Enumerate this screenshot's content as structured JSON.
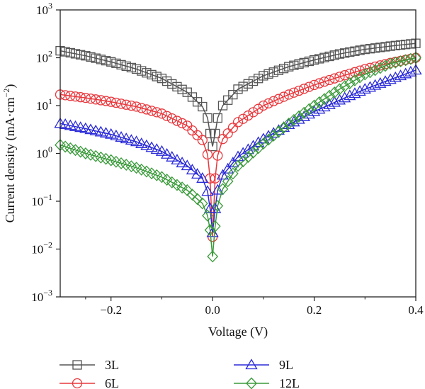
{
  "chart_data": {
    "type": "scatter",
    "title": "",
    "xlabel": "Voltage (V)",
    "ylabel": {
      "text": "Current density (mA·cm",
      "sup": "−2",
      "close": ")"
    },
    "xlim": [
      -0.3,
      0.4
    ],
    "ylim": [
      0.001,
      1000
    ],
    "yscale": "log",
    "grid": false,
    "legend_position": "below",
    "x_ticks": [
      {
        "value": -0.2,
        "label": "−0.2"
      },
      {
        "value": 0.0,
        "label": "0.0"
      },
      {
        "value": 0.2,
        "label": "0.2"
      },
      {
        "value": 0.4,
        "label": "0.4"
      }
    ],
    "y_ticks": [
      {
        "value": 0.001,
        "base": "10",
        "exp": "−3"
      },
      {
        "value": 0.01,
        "base": "10",
        "exp": "−2"
      },
      {
        "value": 0.1,
        "base": "10",
        "exp": "−1"
      },
      {
        "value": 1,
        "base": "10",
        "exp": "0"
      },
      {
        "value": 10,
        "base": "10",
        "exp": "1"
      },
      {
        "value": 100,
        "base": "10",
        "exp": "2"
      },
      {
        "value": 1000,
        "base": "10",
        "exp": "3"
      }
    ],
    "series": [
      {
        "name": "3L",
        "marker": "square",
        "color": "#555555",
        "x": [
          -0.3,
          -0.25,
          -0.2,
          -0.15,
          -0.1,
          -0.05,
          -0.02,
          -0.01,
          -0.005,
          0,
          0.005,
          0.01,
          0.02,
          0.05,
          0.1,
          0.15,
          0.2,
          0.25,
          0.3,
          0.35,
          0.4
        ],
        "y": [
          140,
          110,
          82,
          58,
          37,
          19,
          9.5,
          5.5,
          2.6,
          1.4,
          2.6,
          5.5,
          10,
          22,
          42,
          65,
          90,
          120,
          150,
          175,
          200
        ]
      },
      {
        "name": "6L",
        "marker": "circle",
        "color": "#e8383d",
        "x": [
          -0.3,
          -0.25,
          -0.2,
          -0.15,
          -0.1,
          -0.05,
          -0.02,
          -0.01,
          -0.005,
          0,
          0.005,
          0.01,
          0.02,
          0.05,
          0.1,
          0.15,
          0.2,
          0.25,
          0.3,
          0.35,
          0.4
        ],
        "y": [
          17,
          14.5,
          12,
          9.5,
          6.8,
          3.8,
          1.9,
          0.95,
          0.3,
          0.018,
          0.3,
          0.9,
          2.0,
          4.5,
          10,
          17,
          27,
          40,
          58,
          78,
          100
        ]
      },
      {
        "name": "9L",
        "marker": "triangle",
        "color": "#2b2bd9",
        "x": [
          -0.3,
          -0.25,
          -0.2,
          -0.15,
          -0.1,
          -0.05,
          -0.02,
          -0.01,
          -0.005,
          0,
          0.005,
          0.01,
          0.02,
          0.05,
          0.1,
          0.15,
          0.2,
          0.25,
          0.3,
          0.35,
          0.4
        ],
        "y": [
          4.2,
          3.3,
          2.5,
          1.75,
          1.1,
          0.55,
          0.3,
          0.16,
          0.07,
          0.022,
          0.07,
          0.17,
          0.35,
          0.85,
          2.0,
          4.0,
          7.5,
          13,
          22,
          35,
          55
        ]
      },
      {
        "name": "12L",
        "marker": "diamond",
        "color": "#3a9a3a",
        "x": [
          -0.3,
          -0.25,
          -0.2,
          -0.15,
          -0.1,
          -0.05,
          -0.02,
          -0.01,
          -0.005,
          0,
          0.005,
          0.01,
          0.02,
          0.05,
          0.1,
          0.15,
          0.2,
          0.25,
          0.3,
          0.35,
          0.4
        ],
        "y": [
          1.5,
          1.0,
          0.72,
          0.5,
          0.32,
          0.17,
          0.09,
          0.05,
          0.025,
          0.007,
          0.03,
          0.08,
          0.18,
          0.55,
          1.6,
          4.2,
          10,
          22,
          45,
          75,
          100
        ]
      }
    ]
  }
}
